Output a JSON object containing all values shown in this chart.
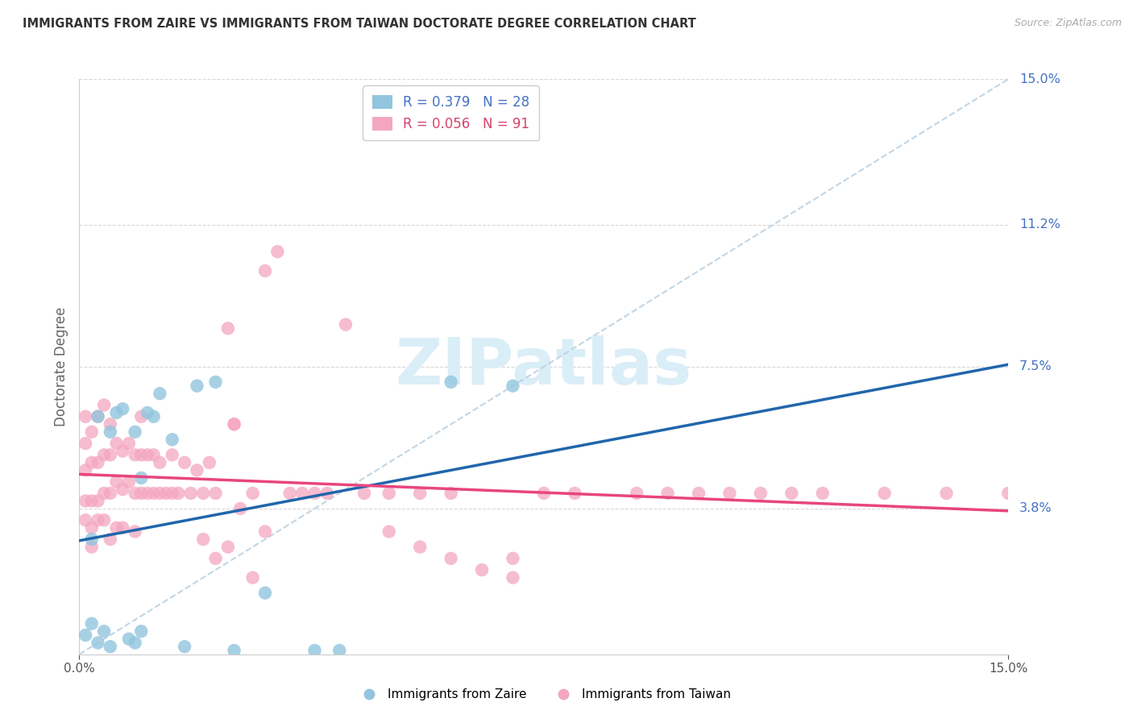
{
  "title": "IMMIGRANTS FROM ZAIRE VS IMMIGRANTS FROM TAIWAN DOCTORATE DEGREE CORRELATION CHART",
  "source_text": "Source: ZipAtlas.com",
  "ylabel": "Doctorate Degree",
  "xlim": [
    0.0,
    0.15
  ],
  "ylim": [
    0.0,
    0.15
  ],
  "ytick_values_right": [
    0.038,
    0.075,
    0.112,
    0.15
  ],
  "ytick_labels_right": [
    "3.8%",
    "7.5%",
    "11.2%",
    "15.0%"
  ],
  "xtick_values": [
    0.0,
    0.15
  ],
  "xtick_labels": [
    "0.0%",
    "15.0%"
  ],
  "zaire_color": "#92c5de",
  "taiwan_color": "#f4a6c0",
  "zaire_regression_color": "#2166ac",
  "taiwan_regression_color": "#e8457e",
  "reference_line_color": "#b8cfe0",
  "background_color": "#ffffff",
  "grid_color": "#d8d8d8",
  "watermark_color": "#daeef8",
  "zaire_R": 0.379,
  "zaire_N": 28,
  "taiwan_R": 0.056,
  "taiwan_N": 91,
  "zaire_x": [
    0.001,
    0.002,
    0.002,
    0.003,
    0.003,
    0.004,
    0.005,
    0.005,
    0.006,
    0.007,
    0.008,
    0.009,
    0.009,
    0.01,
    0.01,
    0.011,
    0.012,
    0.013,
    0.015,
    0.017,
    0.019,
    0.022,
    0.025,
    0.03,
    0.038,
    0.042,
    0.06,
    0.07
  ],
  "zaire_y": [
    0.005,
    0.008,
    0.03,
    0.003,
    0.062,
    0.006,
    0.002,
    0.058,
    0.063,
    0.064,
    0.004,
    0.003,
    0.058,
    0.006,
    0.046,
    0.063,
    0.062,
    0.068,
    0.056,
    0.002,
    0.07,
    0.071,
    0.001,
    0.016,
    0.001,
    0.001,
    0.071,
    0.07
  ],
  "taiwan_x": [
    0.001,
    0.001,
    0.001,
    0.001,
    0.001,
    0.002,
    0.002,
    0.002,
    0.002,
    0.002,
    0.003,
    0.003,
    0.003,
    0.003,
    0.004,
    0.004,
    0.004,
    0.004,
    0.005,
    0.005,
    0.005,
    0.005,
    0.006,
    0.006,
    0.006,
    0.007,
    0.007,
    0.007,
    0.008,
    0.008,
    0.009,
    0.009,
    0.009,
    0.01,
    0.01,
    0.01,
    0.011,
    0.011,
    0.012,
    0.012,
    0.013,
    0.013,
    0.014,
    0.015,
    0.015,
    0.016,
    0.017,
    0.018,
    0.019,
    0.02,
    0.021,
    0.022,
    0.024,
    0.025,
    0.026,
    0.028,
    0.03,
    0.032,
    0.034,
    0.036,
    0.038,
    0.04,
    0.043,
    0.046,
    0.05,
    0.055,
    0.06,
    0.07,
    0.075,
    0.08,
    0.09,
    0.1,
    0.11,
    0.12,
    0.13,
    0.14,
    0.15,
    0.095,
    0.105,
    0.115,
    0.025,
    0.03,
    0.028,
    0.02,
    0.022,
    0.024,
    0.05,
    0.055,
    0.06,
    0.065,
    0.07
  ],
  "taiwan_y": [
    0.04,
    0.048,
    0.055,
    0.035,
    0.062,
    0.04,
    0.05,
    0.033,
    0.058,
    0.028,
    0.04,
    0.05,
    0.035,
    0.062,
    0.042,
    0.052,
    0.035,
    0.065,
    0.042,
    0.052,
    0.03,
    0.06,
    0.045,
    0.055,
    0.033,
    0.043,
    0.053,
    0.033,
    0.045,
    0.055,
    0.042,
    0.052,
    0.032,
    0.042,
    0.052,
    0.062,
    0.042,
    0.052,
    0.042,
    0.052,
    0.042,
    0.05,
    0.042,
    0.042,
    0.052,
    0.042,
    0.05,
    0.042,
    0.048,
    0.042,
    0.05,
    0.042,
    0.085,
    0.06,
    0.038,
    0.042,
    0.1,
    0.105,
    0.042,
    0.042,
    0.042,
    0.042,
    0.086,
    0.042,
    0.042,
    0.042,
    0.042,
    0.025,
    0.042,
    0.042,
    0.042,
    0.042,
    0.042,
    0.042,
    0.042,
    0.042,
    0.042,
    0.042,
    0.042,
    0.042,
    0.06,
    0.032,
    0.02,
    0.03,
    0.025,
    0.028,
    0.032,
    0.028,
    0.025,
    0.022,
    0.02
  ]
}
